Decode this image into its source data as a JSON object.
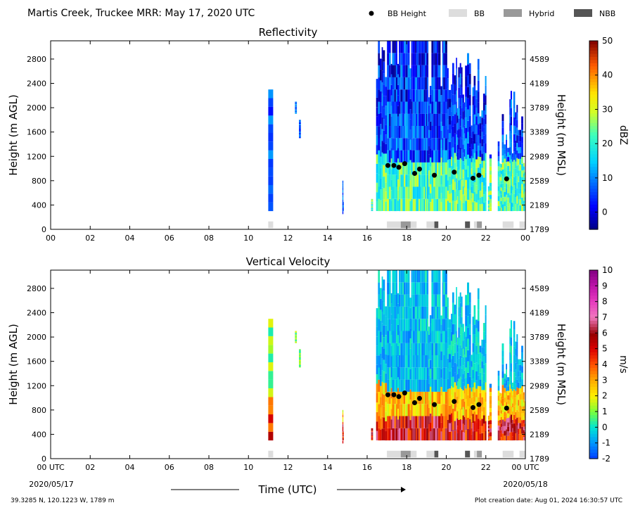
{
  "header": {
    "title": "Martis Creek, Truckee MRR:  May 17, 2020 UTC",
    "legend": [
      {
        "label": "BB Height",
        "kind": "dot",
        "color": "#000000"
      },
      {
        "label": "BB",
        "kind": "box",
        "color": "#dddddd"
      },
      {
        "label": "Hybrid",
        "kind": "box",
        "color": "#999999"
      },
      {
        "label": "NBB",
        "kind": "box",
        "color": "#555555"
      }
    ]
  },
  "footer": {
    "location": "39.3285 N, 120.1223 W, 1789 m",
    "created": "Plot creation date: Aug 01, 2024 16:30:57 UTC",
    "xlabel": "Time (UTC)",
    "start_date": "2020/05/17",
    "end_date": "2020/05/18"
  },
  "chart_data": [
    {
      "type": "heatmap",
      "title": "Reflectivity",
      "xlabel": "Time (UTC)",
      "ylabel": "Height (m AGL)",
      "y2label": "Height (m MSL)",
      "xlim": [
        0,
        24
      ],
      "ylim": [
        0,
        3100
      ],
      "xticks": [
        "00",
        "02",
        "04",
        "06",
        "08",
        "10",
        "12",
        "14",
        "16",
        "18",
        "20",
        "22",
        "00"
      ],
      "yticks": [
        0,
        400,
        800,
        1200,
        1600,
        2000,
        2400,
        2800
      ],
      "y2ticks": [
        "1789",
        "2189",
        "2589",
        "2989",
        "3389",
        "3789",
        "4189",
        "4589"
      ],
      "colorbar": {
        "label": "dBZ",
        "min": -5,
        "max": 50,
        "ticks": [
          0,
          10,
          20,
          30,
          40,
          50
        ]
      },
      "bb_height": [
        {
          "time": 17.05,
          "height": 1050
        },
        {
          "time": 17.35,
          "height": 1050
        },
        {
          "time": 17.6,
          "height": 1020
        },
        {
          "time": 17.9,
          "height": 1080
        },
        {
          "time": 18.4,
          "height": 920
        },
        {
          "time": 18.65,
          "height": 990
        },
        {
          "time": 19.4,
          "height": 890
        },
        {
          "time": 20.4,
          "height": 940
        },
        {
          "time": 21.35,
          "height": 840
        },
        {
          "time": 21.65,
          "height": 890
        },
        {
          "time": 23.05,
          "height": 830
        }
      ],
      "bb_type": [
        {
          "start": 11.0,
          "end": 11.25,
          "class": "BB"
        },
        {
          "start": 17.0,
          "end": 17.7,
          "class": "BB"
        },
        {
          "start": 17.7,
          "end": 18.2,
          "class": "Hybrid"
        },
        {
          "start": 18.2,
          "end": 18.5,
          "class": "BB"
        },
        {
          "start": 19.0,
          "end": 19.4,
          "class": "BB"
        },
        {
          "start": 19.4,
          "end": 19.6,
          "class": "NBB"
        },
        {
          "start": 20.95,
          "end": 21.2,
          "class": "NBB"
        },
        {
          "start": 21.4,
          "end": 21.55,
          "class": "BB"
        },
        {
          "start": 21.55,
          "end": 21.8,
          "class": "Hybrid"
        },
        {
          "start": 22.85,
          "end": 23.4,
          "class": "BB"
        },
        {
          "start": 23.7,
          "end": 24.0,
          "class": "BB"
        }
      ]
    },
    {
      "type": "heatmap",
      "title": "Vertical Velocity",
      "xlabel": "Time (UTC)",
      "ylabel": "Height (m AGL)",
      "y2label": "Height (m MSL)",
      "xlim": [
        0,
        24
      ],
      "ylim": [
        0,
        3100
      ],
      "xticks": [
        "00 UTC",
        "02",
        "04",
        "06",
        "08",
        "10",
        "12",
        "14",
        "16",
        "18",
        "20",
        "22",
        "00 UTC"
      ],
      "yticks": [
        0,
        400,
        800,
        1200,
        1600,
        2000,
        2400,
        2800
      ],
      "y2ticks": [
        "1789",
        "2189",
        "2589",
        "2989",
        "3389",
        "3789",
        "4189",
        "4589"
      ],
      "colorbar": {
        "label": "m/s",
        "min": -2,
        "max": 10,
        "ticks": [
          -2,
          -1,
          0,
          1,
          2,
          3,
          4,
          5,
          6,
          7,
          8,
          9,
          10
        ]
      },
      "bb_height": [
        {
          "time": 17.05,
          "height": 1050
        },
        {
          "time": 17.35,
          "height": 1050
        },
        {
          "time": 17.6,
          "height": 1020
        },
        {
          "time": 17.9,
          "height": 1080
        },
        {
          "time": 18.4,
          "height": 920
        },
        {
          "time": 18.65,
          "height": 990
        },
        {
          "time": 19.4,
          "height": 890
        },
        {
          "time": 20.4,
          "height": 940
        },
        {
          "time": 21.35,
          "height": 840
        },
        {
          "time": 21.65,
          "height": 890
        },
        {
          "time": 23.05,
          "height": 830
        }
      ],
      "bb_type": [
        {
          "start": 11.0,
          "end": 11.25,
          "class": "BB"
        },
        {
          "start": 17.0,
          "end": 17.7,
          "class": "BB"
        },
        {
          "start": 17.7,
          "end": 18.2,
          "class": "Hybrid"
        },
        {
          "start": 18.2,
          "end": 18.5,
          "class": "BB"
        },
        {
          "start": 19.0,
          "end": 19.4,
          "class": "BB"
        },
        {
          "start": 19.4,
          "end": 19.6,
          "class": "NBB"
        },
        {
          "start": 20.95,
          "end": 21.2,
          "class": "NBB"
        },
        {
          "start": 21.4,
          "end": 21.55,
          "class": "BB"
        },
        {
          "start": 21.55,
          "end": 21.8,
          "class": "Hybrid"
        },
        {
          "start": 22.85,
          "end": 23.4,
          "class": "BB"
        },
        {
          "start": 23.7,
          "end": 24.0,
          "class": "BB"
        }
      ]
    }
  ]
}
